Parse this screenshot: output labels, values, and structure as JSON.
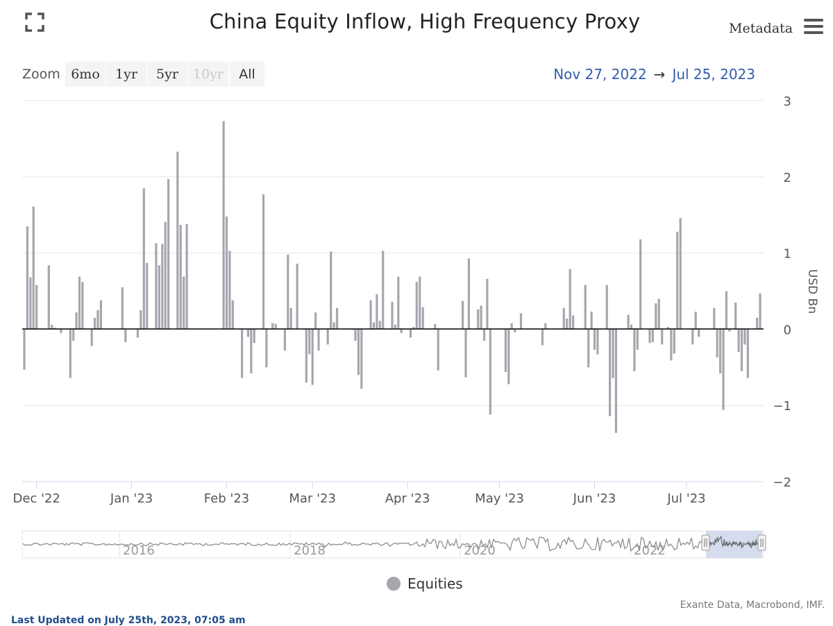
{
  "header": {
    "title": "China Equity Inflow, High Frequency Proxy",
    "metadata_label": "Metadata"
  },
  "zoom": {
    "label": "Zoom",
    "buttons": [
      {
        "label": "6mo",
        "state": "normal"
      },
      {
        "label": "1yr",
        "state": "normal"
      },
      {
        "label": "5yr",
        "state": "normal"
      },
      {
        "label": "10yr",
        "state": "disabled"
      },
      {
        "label": "All",
        "state": "active"
      }
    ]
  },
  "range": {
    "from": "Nov 27, 2022",
    "arrow": "→",
    "to": "Jul 25, 2023"
  },
  "legend": {
    "label": "Equities"
  },
  "credits": "Exante Data, Macrobond, IMF.",
  "last_updated": "Last Updated on July 25th, 2023, 07:05 am",
  "colors": {
    "bar": "#a6a6ae",
    "accent": "#335cad",
    "navigator_mask": "#ccd6eb"
  },
  "icons": [
    "fullscreen-icon",
    "hamburger-menu-icon"
  ],
  "chart_data": {
    "type": "bar",
    "title": "China Equity Inflow, High Frequency Proxy",
    "ylabel": "USD Bn",
    "ylim": [
      -2,
      3
    ],
    "yticks": [
      3,
      2,
      1,
      0,
      -1,
      -2
    ],
    "ytick_labels": [
      "3",
      "2",
      "1",
      "0",
      "−1",
      "−2"
    ],
    "x_start": "2022-11-27",
    "x_end": "2023-07-25",
    "xticks": [
      {
        "label": "Dec '22",
        "date": "2022-12-01"
      },
      {
        "label": "Jan '23",
        "date": "2023-01-01"
      },
      {
        "label": "Feb '23",
        "date": "2023-02-01"
      },
      {
        "label": "Mar '23",
        "date": "2023-03-01"
      },
      {
        "label": "Apr '23",
        "date": "2023-04-01"
      },
      {
        "label": "May '23",
        "date": "2023-05-01"
      },
      {
        "label": "Jun '23",
        "date": "2023-06-01"
      },
      {
        "label": "Jul '23",
        "date": "2023-07-01"
      }
    ],
    "series": [
      {
        "name": "Equities",
        "points": [
          [
            "2022-11-27",
            -0.53
          ],
          [
            "2022-11-28",
            1.35
          ],
          [
            "2022-11-29",
            0.68
          ],
          [
            "2022-11-30",
            1.61
          ],
          [
            "2022-12-01",
            0.58
          ],
          [
            "2022-12-05",
            0.84
          ],
          [
            "2022-12-06",
            0.06
          ],
          [
            "2022-12-07",
            0.02
          ],
          [
            "2022-12-09",
            -0.05
          ],
          [
            "2022-12-12",
            -0.64
          ],
          [
            "2022-12-13",
            -0.15
          ],
          [
            "2022-12-14",
            0.22
          ],
          [
            "2022-12-15",
            0.69
          ],
          [
            "2022-12-16",
            0.62
          ],
          [
            "2022-12-19",
            -0.22
          ],
          [
            "2022-12-20",
            0.15
          ],
          [
            "2022-12-21",
            0.25
          ],
          [
            "2022-12-22",
            0.38
          ],
          [
            "2022-12-29",
            0.55
          ],
          [
            "2022-12-30",
            -0.17
          ],
          [
            "2023-01-03",
            -0.11
          ],
          [
            "2023-01-04",
            0.25
          ],
          [
            "2023-01-05",
            1.85
          ],
          [
            "2023-01-06",
            0.87
          ],
          [
            "2023-01-09",
            1.13
          ],
          [
            "2023-01-10",
            0.84
          ],
          [
            "2023-01-11",
            1.12
          ],
          [
            "2023-01-12",
            1.41
          ],
          [
            "2023-01-13",
            1.97
          ],
          [
            "2023-01-16",
            2.33
          ],
          [
            "2023-01-17",
            1.37
          ],
          [
            "2023-01-18",
            0.69
          ],
          [
            "2023-01-19",
            1.38
          ],
          [
            "2023-01-31",
            2.73
          ],
          [
            "2023-02-01",
            1.48
          ],
          [
            "2023-02-02",
            1.03
          ],
          [
            "2023-02-03",
            0.38
          ],
          [
            "2023-02-06",
            -0.64
          ],
          [
            "2023-02-08",
            -0.1
          ],
          [
            "2023-02-09",
            -0.58
          ],
          [
            "2023-02-10",
            -0.18
          ],
          [
            "2023-02-13",
            1.77
          ],
          [
            "2023-02-14",
            -0.5
          ],
          [
            "2023-02-16",
            0.08
          ],
          [
            "2023-02-17",
            0.07
          ],
          [
            "2023-02-20",
            -0.28
          ],
          [
            "2023-02-21",
            0.98
          ],
          [
            "2023-02-22",
            0.28
          ],
          [
            "2023-02-24",
            0.86
          ],
          [
            "2023-02-27",
            -0.7
          ],
          [
            "2023-02-28",
            -0.33
          ],
          [
            "2023-03-01",
            -0.73
          ],
          [
            "2023-03-02",
            0.22
          ],
          [
            "2023-03-03",
            -0.28
          ],
          [
            "2023-03-06",
            -0.2
          ],
          [
            "2023-03-07",
            1.02
          ],
          [
            "2023-03-08",
            0.09
          ],
          [
            "2023-03-09",
            0.28
          ],
          [
            "2023-03-14",
            -0.01
          ],
          [
            "2023-03-15",
            -0.15
          ],
          [
            "2023-03-16",
            -0.6
          ],
          [
            "2023-03-17",
            -0.78
          ],
          [
            "2023-03-20",
            0.38
          ],
          [
            "2023-03-21",
            0.09
          ],
          [
            "2023-03-22",
            0.46
          ],
          [
            "2023-03-23",
            0.11
          ],
          [
            "2023-03-24",
            1.03
          ],
          [
            "2023-03-27",
            0.36
          ],
          [
            "2023-03-28",
            0.06
          ],
          [
            "2023-03-29",
            0.69
          ],
          [
            "2023-03-30",
            -0.05
          ],
          [
            "2023-04-02",
            -0.11
          ],
          [
            "2023-04-03",
            0.03
          ],
          [
            "2023-04-04",
            0.62
          ],
          [
            "2023-04-05",
            0.69
          ],
          [
            "2023-04-06",
            0.29
          ],
          [
            "2023-04-10",
            0.07
          ],
          [
            "2023-04-11",
            -0.54
          ],
          [
            "2023-04-19",
            0.37
          ],
          [
            "2023-04-20",
            -0.63
          ],
          [
            "2023-04-21",
            0.93
          ],
          [
            "2023-04-24",
            0.26
          ],
          [
            "2023-04-25",
            0.31
          ],
          [
            "2023-04-26",
            -0.15
          ],
          [
            "2023-04-27",
            0.66
          ],
          [
            "2023-04-28",
            -1.12
          ],
          [
            "2023-05-03",
            -0.56
          ],
          [
            "2023-05-04",
            -0.72
          ],
          [
            "2023-05-05",
            0.08
          ],
          [
            "2023-05-06",
            -0.04
          ],
          [
            "2023-05-08",
            0.21
          ],
          [
            "2023-05-15",
            -0.21
          ],
          [
            "2023-05-16",
            0.08
          ],
          [
            "2023-05-22",
            0.28
          ],
          [
            "2023-05-23",
            0.14
          ],
          [
            "2023-05-24",
            0.79
          ],
          [
            "2023-05-25",
            0.18
          ],
          [
            "2023-05-29",
            0.58
          ],
          [
            "2023-05-30",
            -0.5
          ],
          [
            "2023-05-31",
            0.23
          ],
          [
            "2023-06-01",
            -0.27
          ],
          [
            "2023-06-02",
            -0.33
          ],
          [
            "2023-06-05",
            0.58
          ],
          [
            "2023-06-06",
            -1.14
          ],
          [
            "2023-06-07",
            -0.64
          ],
          [
            "2023-06-08",
            -1.36
          ],
          [
            "2023-06-12",
            0.19
          ],
          [
            "2023-06-13",
            0.06
          ],
          [
            "2023-06-14",
            -0.55
          ],
          [
            "2023-06-15",
            -0.27
          ],
          [
            "2023-06-16",
            1.18
          ],
          [
            "2023-06-19",
            -0.18
          ],
          [
            "2023-06-20",
            -0.17
          ],
          [
            "2023-06-21",
            0.34
          ],
          [
            "2023-06-22",
            0.4
          ],
          [
            "2023-06-23",
            -0.2
          ],
          [
            "2023-06-25",
            0.03
          ],
          [
            "2023-06-26",
            -0.41
          ],
          [
            "2023-06-27",
            -0.32
          ],
          [
            "2023-06-28",
            1.28
          ],
          [
            "2023-06-29",
            1.46
          ],
          [
            "2023-07-03",
            -0.2
          ],
          [
            "2023-07-04",
            0.23
          ],
          [
            "2023-07-05",
            -0.1
          ],
          [
            "2023-07-10",
            0.28
          ],
          [
            "2023-07-11",
            -0.37
          ],
          [
            "2023-07-12",
            -0.58
          ],
          [
            "2023-07-13",
            -1.06
          ],
          [
            "2023-07-14",
            0.5
          ],
          [
            "2023-07-15",
            -0.03
          ],
          [
            "2023-07-17",
            0.35
          ],
          [
            "2023-07-18",
            -0.3
          ],
          [
            "2023-07-19",
            -0.55
          ],
          [
            "2023-07-20",
            -0.2
          ],
          [
            "2023-07-21",
            -0.64
          ],
          [
            "2023-07-24",
            0.15
          ],
          [
            "2023-07-25",
            0.47
          ]
        ]
      }
    ],
    "navigator": {
      "year_labels": [
        "2016",
        "2018",
        "2020",
        "2022"
      ],
      "selected_range": [
        "2022-11-27",
        "2023-07-25"
      ]
    }
  }
}
